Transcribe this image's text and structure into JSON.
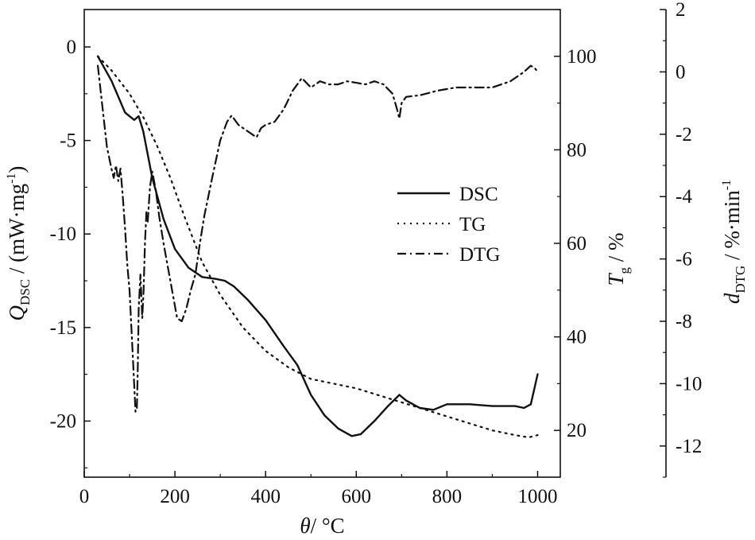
{
  "chart_data": {
    "type": "line",
    "x_axis": {
      "label_symbol": "θ",
      "label_unit": "/ °C",
      "range": [
        0,
        1050
      ],
      "ticks": [
        0,
        200,
        400,
        600,
        800,
        1000
      ]
    },
    "y_axes": [
      {
        "id": "left",
        "label_symbol": "Q",
        "label_sub": "DSC",
        "label_unit": " / (mW·mg",
        "label_sup": "-1",
        "label_close": ")",
        "range": [
          -23,
          2
        ],
        "ticks": [
          0,
          -5,
          -10,
          -15,
          -20
        ]
      },
      {
        "id": "right1",
        "label_symbol": "T",
        "label_sub": "g",
        "label_unit": " / %",
        "range": [
          10,
          110
        ],
        "ticks": [
          20,
          40,
          60,
          80,
          100
        ]
      },
      {
        "id": "right2",
        "label_symbol": "d",
        "label_sub": "DTG",
        "label_unit": " / %·min",
        "label_sup": "-1",
        "range": [
          -13,
          2
        ],
        "ticks": [
          2,
          0,
          -2,
          -4,
          -6,
          -8,
          -10,
          -12
        ]
      }
    ],
    "legend": {
      "placement": "center-right",
      "entries": [
        "DSC",
        "TG",
        "DTG"
      ]
    },
    "series": [
      {
        "name": "DSC",
        "axis": "left",
        "style": "solid",
        "x": [
          30,
          60,
          90,
          110,
          120,
          130,
          150,
          175,
          200,
          230,
          260,
          290,
          310,
          330,
          360,
          400,
          440,
          470,
          500,
          530,
          560,
          590,
          610,
          640,
          670,
          695,
          710,
          740,
          770,
          800,
          850,
          900,
          950,
          970,
          985,
          1000
        ],
        "y": [
          -0.5,
          -1.8,
          -3.5,
          -3.9,
          -3.7,
          -4.5,
          -7.0,
          -9.2,
          -10.8,
          -11.8,
          -12.3,
          -12.4,
          -12.5,
          -12.8,
          -13.5,
          -14.6,
          -16.0,
          -17.0,
          -18.6,
          -19.7,
          -20.4,
          -20.8,
          -20.7,
          -20.0,
          -19.2,
          -18.6,
          -18.9,
          -19.3,
          -19.4,
          -19.1,
          -19.1,
          -19.2,
          -19.2,
          -19.3,
          -19.1,
          -17.5
        ]
      },
      {
        "name": "TG",
        "axis": "right1",
        "style": "dotted",
        "x": [
          30,
          60,
          100,
          130,
          160,
          190,
          220,
          260,
          300,
          350,
          400,
          450,
          500,
          600,
          700,
          800,
          900,
          950,
          980,
          1000
        ],
        "y": [
          100,
          97,
          92,
          87,
          81,
          74,
          66,
          56,
          49,
          42,
          37,
          33.5,
          31,
          29,
          26,
          23,
          20,
          19,
          18.5,
          19
        ]
      },
      {
        "name": "DTG",
        "axis": "right2",
        "style": "dashdot",
        "x": [
          30,
          50,
          60,
          65,
          70,
          75,
          80,
          85,
          90,
          95,
          100,
          105,
          110,
          113,
          116,
          118,
          120,
          124,
          128,
          131,
          134,
          137,
          140,
          145,
          150,
          158,
          165,
          175,
          185,
          195,
          205,
          215,
          225,
          235,
          245,
          255,
          265,
          275,
          285,
          300,
          315,
          325,
          340,
          360,
          380,
          390,
          400,
          420,
          440,
          460,
          480,
          500,
          520,
          540,
          560,
          580,
          600,
          620,
          640,
          660,
          680,
          690,
          695,
          700,
          710,
          740,
          780,
          820,
          860,
          900,
          940,
          970,
          985,
          995,
          1000
        ],
        "y": [
          0.2,
          -2.4,
          -3.1,
          -3.4,
          -3.0,
          -3.5,
          -3.1,
          -4.0,
          -5.0,
          -6.2,
          -7.0,
          -8.5,
          -10.0,
          -10.9,
          -10.8,
          -9.6,
          -7.6,
          -6.5,
          -7.9,
          -7.0,
          -5.5,
          -4.5,
          -4.8,
          -3.7,
          -3.2,
          -3.8,
          -4.6,
          -5.5,
          -6.3,
          -7.1,
          -7.9,
          -8.0,
          -7.6,
          -7.0,
          -6.5,
          -5.5,
          -4.6,
          -3.9,
          -3.2,
          -2.2,
          -1.6,
          -1.4,
          -1.7,
          -1.9,
          -2.1,
          -1.8,
          -1.7,
          -1.6,
          -1.2,
          -0.6,
          -0.2,
          -0.5,
          -0.3,
          -0.4,
          -0.4,
          -0.3,
          -0.35,
          -0.4,
          -0.3,
          -0.4,
          -0.7,
          -1.2,
          -1.5,
          -1.0,
          -0.8,
          -0.75,
          -0.6,
          -0.5,
          -0.5,
          -0.5,
          -0.3,
          0.0,
          0.2,
          0.1,
          0.0
        ]
      }
    ]
  }
}
